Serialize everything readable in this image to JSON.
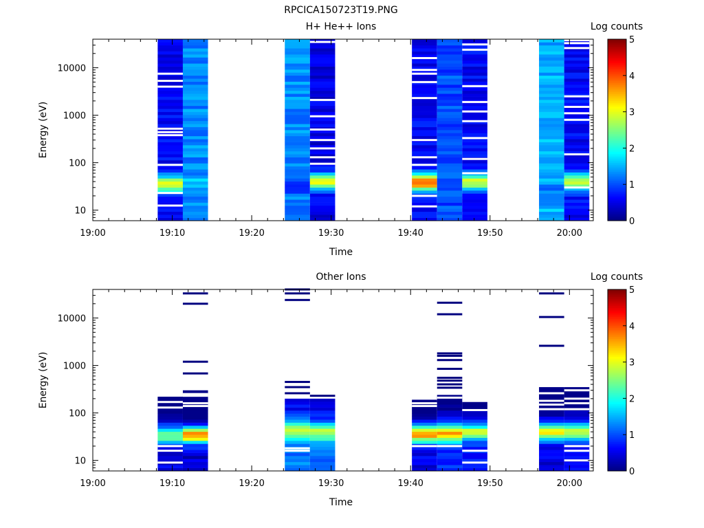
{
  "figure": {
    "title": "RPCICA150723T19.PNG"
  },
  "colormap": [
    "#00007f",
    "#0000ff",
    "#007fff",
    "#00ffff",
    "#7fff7f",
    "#ffff00",
    "#ff7f00",
    "#ff0000",
    "#7f0000"
  ],
  "chart_data": [
    {
      "type": "heatmap",
      "title": "H+ He++ Ions",
      "xlabel": "Time",
      "ylabel": "Energy (eV)",
      "y_scale": "log",
      "x_ticks": [
        "19:00",
        "19:10",
        "19:20",
        "19:30",
        "19:40",
        "19:50",
        "20:00"
      ],
      "xlim": [
        "19:00",
        "20:03"
      ],
      "ylim": [
        6,
        40000
      ],
      "y_ticks": [
        10,
        100,
        1000,
        10000
      ],
      "y_tick_labels": [
        "10",
        "100",
        "1000",
        "10000"
      ],
      "colorbar": {
        "label": "Log counts",
        "range": [
          0,
          5
        ],
        "ticks": [
          "0",
          "1",
          "2",
          "3",
          "4",
          "5"
        ]
      },
      "columns": [
        {
          "start": "19:08:10",
          "end": "19:11:20",
          "base": 0.6,
          "peak": {
            "center_ev": 35,
            "value": 3.1
          },
          "gaps_ev": [
            7500,
            5300,
            4000,
            520,
            440,
            380,
            90,
            23,
            12.5
          ]
        },
        {
          "start": "19:11:20",
          "end": "19:14:30",
          "base": 1.3,
          "peak": {
            "center_ev": 35,
            "value": 1.6
          },
          "gaps_ev": []
        },
        {
          "start": "19:24:10",
          "end": "19:27:20",
          "base": 1.3,
          "peak": {
            "center_ev": 30,
            "value": 1.0
          },
          "gaps_ev": []
        },
        {
          "start": "19:27:20",
          "end": "19:30:30",
          "base": 0.5,
          "peak": {
            "center_ev": 40,
            "value": 3.0
          },
          "gaps_ev": [
            35000,
            2100,
            950,
            500,
            300,
            200,
            130,
            95
          ]
        },
        {
          "start": "19:40:10",
          "end": "19:43:20",
          "base": 0.6,
          "peak": {
            "center_ev": 38,
            "value": 3.8
          },
          "gaps_ev": [
            16000,
            9000,
            7500,
            5000,
            2300,
            300,
            130,
            90,
            20,
            12
          ]
        },
        {
          "start": "19:43:20",
          "end": "19:46:30",
          "base": 1.0,
          "peak": {
            "center_ev": 30,
            "value": 1.1
          },
          "gaps_ev": []
        },
        {
          "start": "19:46:30",
          "end": "19:49:40",
          "base": 0.6,
          "peak": {
            "center_ev": 40,
            "value": 3.0
          },
          "gaps_ev": [
            31000,
            24000,
            4100,
            1900,
            1200,
            750,
            330,
            120,
            60
          ]
        },
        {
          "start": "19:56:10",
          "end": "19:59:20",
          "base": 1.5,
          "peak": {
            "center_ev": 25,
            "value": 1.2
          },
          "gaps_ev": []
        },
        {
          "start": "19:59:20",
          "end": "20:02:30",
          "base": 0.6,
          "peak": {
            "center_ev": 40,
            "value": 2.9
          },
          "gaps_ev": [
            38000,
            33000,
            26000,
            2500,
            1500,
            1100,
            800,
            150,
            30
          ]
        }
      ]
    },
    {
      "type": "heatmap",
      "title": "Other Ions",
      "xlabel": "Time",
      "ylabel": "Energy (eV)",
      "y_scale": "log",
      "x_ticks": [
        "19:00",
        "19:10",
        "19:20",
        "19:30",
        "19:40",
        "19:50",
        "20:00"
      ],
      "xlim": [
        "19:00",
        "20:03"
      ],
      "ylim": [
        6,
        40000
      ],
      "y_ticks": [
        10,
        100,
        1000,
        10000
      ],
      "y_tick_labels": [
        "10",
        "100",
        "1000",
        "10000"
      ],
      "colorbar": {
        "label": "Log counts",
        "range": [
          0,
          5
        ],
        "ticks": [
          "0",
          "1",
          "2",
          "3",
          "4",
          "5"
        ]
      },
      "columns": [
        {
          "start": "19:08:10",
          "end": "19:11:20",
          "top_ev": 220,
          "base": 0.5,
          "peak": {
            "center_ev": 35,
            "value": 2.6
          },
          "gaps_ev": [
            170,
            130,
            20,
            16,
            9
          ]
        },
        {
          "start": "19:11:20",
          "end": "19:14:30",
          "top_ev": 300,
          "base": 0.4,
          "peak": {
            "center_ev": 35,
            "value": 3.6
          },
          "gaps_ev": [
            250,
            230,
            160,
            140
          ],
          "lines_ev": [
            33000,
            20000,
            1200,
            680
          ]
        },
        {
          "start": "19:24:10",
          "end": "19:27:20",
          "top_ev": 200,
          "base": 1.2,
          "peak": {
            "center_ev": 45,
            "value": 2.8
          },
          "gaps_ev": [
            18,
            16
          ],
          "lines_ev": [
            40000,
            33000,
            24000,
            450,
            350,
            260
          ]
        },
        {
          "start": "19:27:20",
          "end": "19:30:30",
          "top_ev": 200,
          "base": 1.2,
          "peak": {
            "center_ev": 40,
            "value": 2.7
          },
          "gaps_ev": [],
          "lines_ev": [
            230
          ]
        },
        {
          "start": "19:40:10",
          "end": "19:43:20",
          "top_ev": 190,
          "base": 0.5,
          "peak": {
            "center_ev": 36,
            "value": 3.7
          },
          "gaps_ev": [
            160,
            140,
            20
          ]
        },
        {
          "start": "19:43:20",
          "end": "19:46:30",
          "top_ev": 240,
          "base": 0.8,
          "peak": {
            "center_ev": 36,
            "value": 3.5
          },
          "gaps_ev": [
            210,
            20
          ],
          "lines_ev": [
            21000,
            12000,
            1800,
            1600,
            1300,
            850,
            550,
            480,
            400,
            340
          ]
        },
        {
          "start": "19:46:30",
          "end": "19:49:40",
          "top_ev": 170,
          "base": 0.7,
          "peak": {
            "center_ev": 40,
            "value": 2.8
          },
          "gaps_ev": [
            115,
            16,
            9
          ]
        },
        {
          "start": "19:56:10",
          "end": "19:59:20",
          "top_ev": 350,
          "base": 0.5,
          "peak": {
            "center_ev": 40,
            "value": 3.3
          },
          "gaps_ev": [
            260,
            180,
            150,
            120
          ],
          "lines_ev": [
            33000,
            10500,
            2600
          ]
        },
        {
          "start": "19:59:20",
          "end": "20:02:30",
          "top_ev": 350,
          "base": 0.7,
          "peak": {
            "center_ev": 40,
            "value": 2.9
          },
          "gaps_ev": [
            300,
            200,
            160,
            120,
            20,
            16,
            10
          ]
        }
      ]
    }
  ]
}
